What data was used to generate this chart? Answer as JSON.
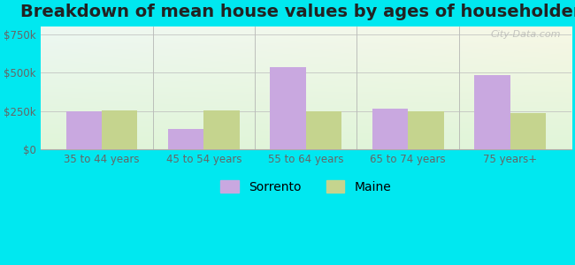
{
  "title": "Breakdown of mean house values by ages of householders",
  "categories": [
    "35 to 44 years",
    "45 to 54 years",
    "55 to 64 years",
    "65 to 74 years",
    "75 years+"
  ],
  "sorrento": [
    245000,
    130000,
    535000,
    265000,
    485000
  ],
  "maine": [
    255000,
    255000,
    248000,
    248000,
    235000
  ],
  "sorrento_color": "#c9a8e0",
  "maine_color": "#c5d48e",
  "yticks": [
    0,
    250000,
    500000,
    750000
  ],
  "ylabels": [
    "$0",
    "$250k",
    "$500k",
    "$750k"
  ],
  "ylim": [
    0,
    800000
  ],
  "bg_color_top_right": "#dff5f0",
  "bg_color_bottom_left": "#e8f5e0",
  "outer_color": "#00e8f0",
  "title_fontsize": 14,
  "legend_labels": [
    "Sorrento",
    "Maine"
  ],
  "bar_width": 0.35,
  "watermark": "City-Data.com"
}
